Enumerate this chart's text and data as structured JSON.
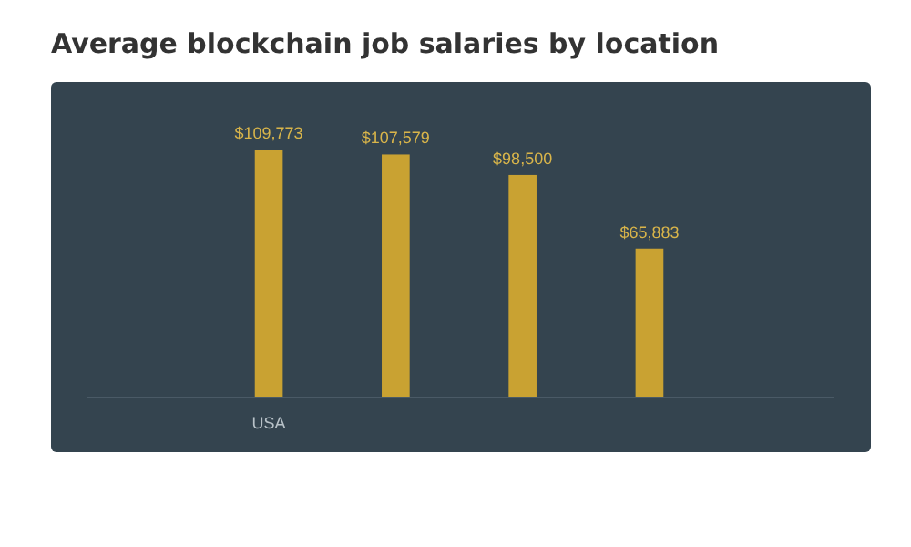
{
  "chart_data": {
    "type": "bar",
    "title": "Average blockchain job salaries by location",
    "categories": [
      "USA",
      null,
      null,
      null
    ],
    "values": [
      109773,
      107579,
      98500,
      65883
    ],
    "value_labels": [
      "$109,773",
      "$107,579",
      "$98,500",
      "$65,883"
    ],
    "color": "#c9a232"
  }
}
